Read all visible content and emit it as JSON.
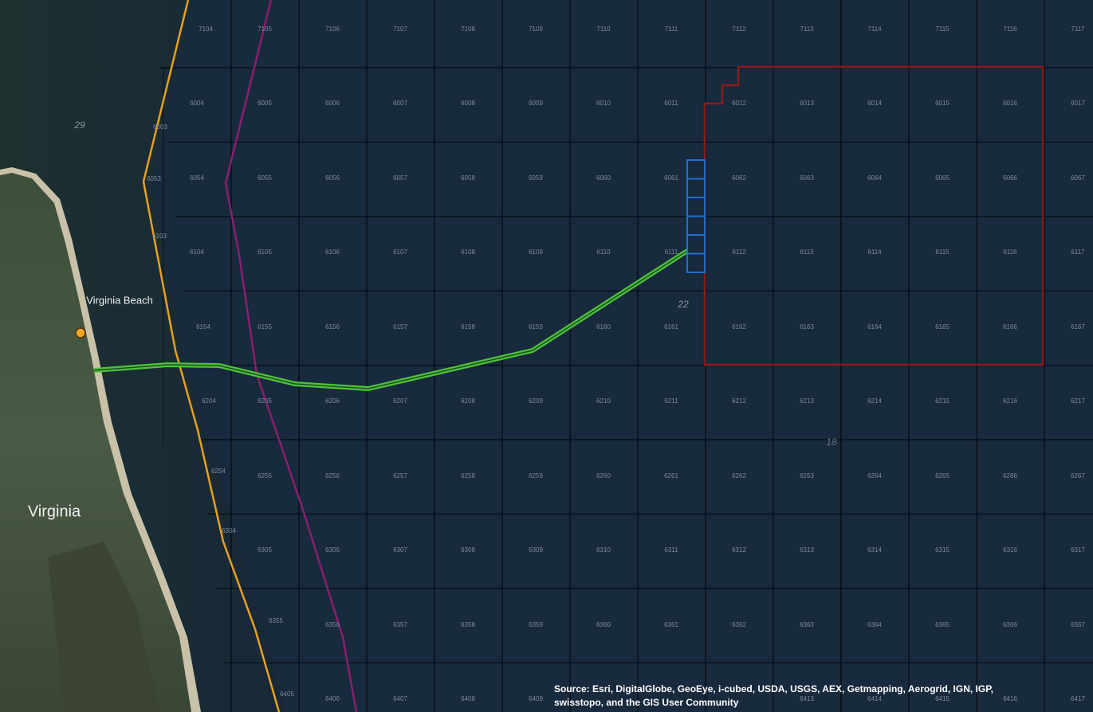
{
  "map": {
    "grid_rows": [
      [
        "7104",
        "7105",
        "7106",
        "7107",
        "7108",
        "7109",
        "7110",
        "7111",
        "7112",
        "7113",
        "7114",
        "7115",
        "7116",
        "7117"
      ],
      [
        "6004",
        "6005",
        "6006",
        "6007",
        "6008",
        "6009",
        "6010",
        "6011",
        "6012",
        "6013",
        "6014",
        "6015",
        "6016",
        "6017"
      ],
      [
        "6054",
        "6055",
        "6056",
        "6057",
        "6058",
        "6059",
        "6060",
        "6061",
        "6062",
        "6063",
        "6064",
        "6065",
        "6066",
        "6067"
      ],
      [
        "6104",
        "6105",
        "6106",
        "6107",
        "6108",
        "6109",
        "6110",
        "6111",
        "6112",
        "6113",
        "6114",
        "6115",
        "6116",
        "6117"
      ],
      [
        "6154",
        "6155",
        "6156",
        "6157",
        "6158",
        "6159",
        "6160",
        "6161",
        "6162",
        "6163",
        "6164",
        "6165",
        "6166",
        "6167"
      ],
      [
        "6204",
        "6205",
        "6206",
        "6207",
        "6208",
        "6209",
        "6210",
        "6211",
        "6212",
        "6213",
        "6214",
        "6215",
        "6216",
        "6217"
      ],
      [
        "6254",
        "6255",
        "6256",
        "6257",
        "6258",
        "6259",
        "6260",
        "6261",
        "6262",
        "6263",
        "6264",
        "6265",
        "6266",
        "6267"
      ],
      [
        "6304",
        "6305",
        "6306",
        "6307",
        "6308",
        "6309",
        "6310",
        "6311",
        "6312",
        "6313",
        "6314",
        "6315",
        "6316",
        "6317"
      ],
      [
        null,
        "6355",
        "6356",
        "6357",
        "6358",
        "6359",
        "6360",
        "6361",
        "6362",
        "6363",
        "6364",
        "6365",
        "6366",
        "6367"
      ],
      [
        null,
        "6405",
        "6406",
        "6407",
        "6408",
        "6409",
        null,
        null,
        null,
        "6413",
        "6414",
        "6415",
        "6416",
        "6417"
      ]
    ],
    "edge_labels": [
      "6003",
      "6053",
      "6103"
    ],
    "zone_labels": [
      "29",
      "22",
      "18"
    ],
    "place_labels": [
      "Virginia Beach",
      "Virginia"
    ],
    "attribution": [
      "Source: Esri, DigitalGlobe, GeoEye, i-cubed, USDA, USGS, AEX, Getmapping, Aerogrid, IGN, IGP,",
      "swisstopo, and the GIS User Community"
    ]
  }
}
